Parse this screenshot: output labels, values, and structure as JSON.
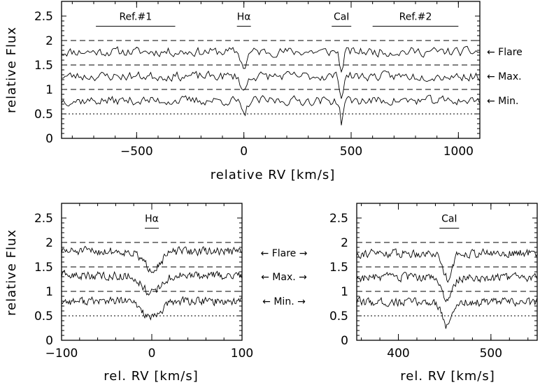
{
  "chart_data": [
    {
      "type": "line",
      "panel": "top",
      "xlabel": "relative RV [km/s]",
      "ylabel": "relative Flux",
      "xlim": [
        -850,
        1100
      ],
      "ylim": [
        0,
        2.8
      ],
      "xticks": [
        -500,
        0,
        500,
        1000
      ],
      "xtick_labels": [
        "−500",
        "0",
        "500",
        "1000"
      ],
      "yticks": [
        0,
        0.5,
        1,
        1.5,
        2,
        2.5
      ],
      "ytick_labels": [
        "0",
        "0.5",
        "1",
        "1.5",
        "2",
        "2.5"
      ],
      "reference_lines": [
        {
          "y": 2.0,
          "style": "dashed"
        },
        {
          "y": 1.5,
          "style": "dashed"
        },
        {
          "y": 1.0,
          "style": "dashed"
        },
        {
          "y": 0.5,
          "style": "dotted"
        }
      ],
      "series": [
        {
          "name": "Flare",
          "baseline": 1.77,
          "noise": 0.13,
          "seed": 11
        },
        {
          "name": "Max.",
          "baseline": 1.27,
          "noise": 0.13,
          "seed": 23
        },
        {
          "name": "Min.",
          "baseline": 0.77,
          "noise": 0.13,
          "seed": 37
        }
      ],
      "absorption_features": [
        {
          "center": 0,
          "depth": 0.32,
          "width": 18
        },
        {
          "center": 455,
          "depth": 0.45,
          "width": 10
        }
      ],
      "annotations": [
        {
          "text": "Ref.#1",
          "x_from": -690,
          "x_to": -320,
          "y": 2.42
        },
        {
          "text": "Hα",
          "x": 0,
          "y": 2.42
        },
        {
          "text": "CaI",
          "x": 455,
          "y": 2.42
        },
        {
          "text": "Ref.#2",
          "x_from": 600,
          "x_to": 1000,
          "y": 2.42
        }
      ],
      "side_labels": [
        "← Flare",
        "← Max.",
        "← Min."
      ]
    },
    {
      "type": "line",
      "panel": "bottom-left",
      "xlabel": "rel. RV [km/s]",
      "ylabel": "relative Flux",
      "xlim": [
        -100,
        100
      ],
      "ylim": [
        0,
        2.8
      ],
      "xticks": [
        -100,
        0,
        100
      ],
      "xtick_labels": [
        "−100",
        "0",
        "100"
      ],
      "yticks": [
        0,
        0.5,
        1,
        1.5,
        2,
        2.5
      ],
      "ytick_labels": [
        "0",
        "0.5",
        "1",
        "1.5",
        "2",
        "2.5"
      ],
      "reference_lines": [
        {
          "y": 2.0,
          "style": "dashed"
        },
        {
          "y": 1.5,
          "style": "dashed"
        },
        {
          "y": 1.0,
          "style": "dashed"
        },
        {
          "y": 0.5,
          "style": "dotted"
        }
      ],
      "series": [
        {
          "name": "Flare",
          "baseline": 1.82,
          "noise": 0.12,
          "seed": 51
        },
        {
          "name": "Max.",
          "baseline": 1.32,
          "noise": 0.12,
          "seed": 63
        },
        {
          "name": "Min.",
          "baseline": 0.8,
          "noise": 0.12,
          "seed": 77
        }
      ],
      "absorption_features": [
        {
          "center": 0,
          "depth": 0.35,
          "width": 14
        }
      ],
      "annotations": [
        {
          "text": "Hα",
          "x": 0,
          "y": 2.42
        }
      ]
    },
    {
      "type": "line",
      "panel": "bottom-right",
      "xlabel": "rel. RV [km/s]",
      "ylabel": "",
      "xlim": [
        355,
        550
      ],
      "ylim": [
        0,
        2.8
      ],
      "xticks": [
        400,
        500
      ],
      "xtick_labels": [
        "400",
        "500"
      ],
      "yticks": [
        0,
        0.5,
        1,
        1.5,
        2,
        2.5
      ],
      "ytick_labels": [
        "0",
        "0.5",
        "1",
        "1.5",
        "2",
        "2.5"
      ],
      "reference_lines": [
        {
          "y": 2.0,
          "style": "dashed"
        },
        {
          "y": 1.5,
          "style": "dashed"
        },
        {
          "y": 1.0,
          "style": "dashed"
        },
        {
          "y": 0.5,
          "style": "dotted"
        }
      ],
      "series": [
        {
          "name": "Flare",
          "baseline": 1.78,
          "noise": 0.12,
          "seed": 91
        },
        {
          "name": "Max.",
          "baseline": 1.28,
          "noise": 0.12,
          "seed": 103
        },
        {
          "name": "Min.",
          "baseline": 0.78,
          "noise": 0.12,
          "seed": 117
        }
      ],
      "absorption_features": [
        {
          "center": 453,
          "depth": 0.5,
          "width": 7
        }
      ],
      "annotations": [
        {
          "text": "CaI",
          "x": 455,
          "y": 2.42
        }
      ]
    }
  ],
  "middle_labels": [
    {
      "text": "← Flare →"
    },
    {
      "text": "← Max. →"
    },
    {
      "text": "← Min. →"
    }
  ]
}
